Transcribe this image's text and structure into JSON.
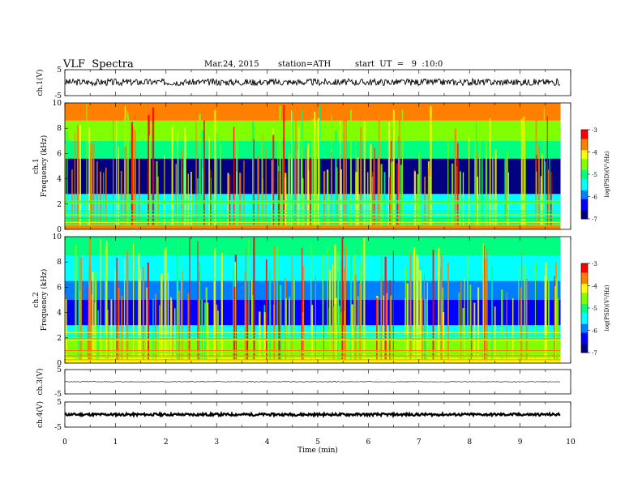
{
  "header": {
    "title": "VLF  Spectra",
    "date": "Mar.24, 2015",
    "station": "station=ATH",
    "start": "start  UT  =   9  :10:0"
  },
  "chart_data": [
    {
      "type": "line",
      "name": "ch1-waveform",
      "ylabel": "ch.1(V)",
      "ylim": [
        -5,
        5
      ],
      "y_ticks": [
        "5",
        "-5"
      ],
      "x_range": [
        0,
        10
      ],
      "trace": {
        "mean": 0.2,
        "noise_amplitude": 1.3,
        "end_min": 9.8
      }
    },
    {
      "type": "heatmap",
      "name": "ch1-spectrogram",
      "ylabel": "ch.1\nFrequency  (kHz)",
      "ylim": [
        0,
        10
      ],
      "y_ticks": [
        "0",
        "2",
        "4",
        "6",
        "8",
        "10"
      ],
      "x_range": [
        0,
        10
      ],
      "data_end_min": 9.8,
      "colorbar": {
        "label": "log(PSD)(V²/Hz)",
        "range": [
          -7,
          -3
        ],
        "ticks": [
          "-3",
          "-4",
          "-5",
          "-6",
          "-7"
        ]
      },
      "bands_khz": [
        {
          "from": 0,
          "to": 0.4,
          "logpsd": -3.6
        },
        {
          "from": 0.4,
          "to": 1.0,
          "logpsd": -4.8
        },
        {
          "from": 1.0,
          "to": 2.0,
          "logpsd": -5.5
        },
        {
          "from": 2.0,
          "to": 2.8,
          "logpsd": -5.6
        },
        {
          "from": 2.8,
          "to": 5.6,
          "logpsd": -6.7
        },
        {
          "from": 5.6,
          "to": 7.0,
          "logpsd": -5.0
        },
        {
          "from": 7.0,
          "to": 8.6,
          "logpsd": -4.5
        },
        {
          "from": 8.6,
          "to": 10.0,
          "logpsd": -3.8
        }
      ]
    },
    {
      "type": "heatmap",
      "name": "ch2-spectrogram",
      "ylabel": "ch.2\nFrequency  (kHz)",
      "ylim": [
        0,
        10
      ],
      "y_ticks": [
        "0",
        "2",
        "4",
        "6",
        "8",
        "10"
      ],
      "x_range": [
        0,
        10
      ],
      "data_end_min": 9.8,
      "colorbar": {
        "label": "log(PSD)(V²/Hz)",
        "range": [
          -7,
          -3
        ],
        "ticks": [
          "-3",
          "-4",
          "-5",
          "-6",
          "-7"
        ]
      },
      "bands_khz": [
        {
          "from": 0,
          "to": 0.5,
          "logpsd": -4.0
        },
        {
          "from": 0.5,
          "to": 2.0,
          "logpsd": -4.7
        },
        {
          "from": 2.0,
          "to": 3.0,
          "logpsd": -5.4
        },
        {
          "from": 3.0,
          "to": 5.0,
          "logpsd": -6.2
        },
        {
          "from": 5.0,
          "to": 6.5,
          "logpsd": -5.8
        },
        {
          "from": 6.5,
          "to": 8.5,
          "logpsd": -5.3
        },
        {
          "from": 8.5,
          "to": 10.0,
          "logpsd": -4.9
        }
      ]
    },
    {
      "type": "line",
      "name": "ch3-waveform",
      "ylabel": "ch.3(V)",
      "ylim": [
        -5,
        5
      ],
      "y_ticks": [
        "5",
        "-5"
      ],
      "x_range": [
        0,
        10
      ],
      "trace": {
        "mean": 0.0,
        "noise_amplitude": 0.15,
        "end_min": 9.8
      }
    },
    {
      "type": "line",
      "name": "ch4-waveform",
      "ylabel": "ch.4(V)",
      "ylim": [
        -5,
        5
      ],
      "y_ticks": [
        "5",
        "-5"
      ],
      "x_range": [
        0,
        10
      ],
      "trace": {
        "mean": 0.0,
        "noise_amplitude": 0.5,
        "end_min": 9.8
      }
    }
  ],
  "x_axis": {
    "label": "Time  (min)",
    "ticks": [
      "0",
      "1",
      "2",
      "3",
      "4",
      "5",
      "6",
      "7",
      "8",
      "9",
      "10"
    ]
  },
  "colors": {
    "jet": [
      "#000080",
      "#0000ff",
      "#0080ff",
      "#00ffff",
      "#00ff80",
      "#80ff00",
      "#ffff00",
      "#ff8000",
      "#ff0000",
      "#ffffff"
    ]
  }
}
